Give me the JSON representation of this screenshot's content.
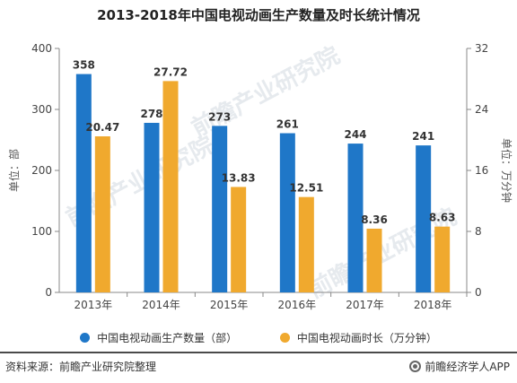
{
  "title": "2013-2018年中国电视动画生产数量及时长统计情况",
  "chart_data": {
    "type": "bar",
    "title": "2013-2018年中国电视动画生产数量及时长统计情况",
    "categories": [
      "2013年",
      "2014年",
      "2015年",
      "2016年",
      "2017年",
      "2018年"
    ],
    "series": [
      {
        "name": "中国电视动画生产数量（部）",
        "axis": "left",
        "color": "#1f77c8",
        "values": [
          358,
          278,
          273,
          261,
          244,
          241
        ],
        "labels": [
          "358",
          "278",
          "273",
          "261",
          "244",
          "241"
        ]
      },
      {
        "name": "中国电视动画时长（万分钟）",
        "axis": "right",
        "color": "#f0a92e",
        "values": [
          20.47,
          27.72,
          13.83,
          12.51,
          8.36,
          8.63
        ],
        "labels": [
          "20.47",
          "27.72",
          "13.83",
          "12.51",
          "8.36",
          "8.63"
        ]
      }
    ],
    "ylabel_left": "单位：部",
    "ylabel_right": "单位：万分钟",
    "ylim_left": [
      0,
      400
    ],
    "ylim_right": [
      0,
      32
    ],
    "yticks_left": [
      0,
      100,
      200,
      300,
      400
    ],
    "yticks_right": [
      0,
      8,
      16,
      24,
      32
    ],
    "grid": false,
    "legend_position": "bottom"
  },
  "source": "资料来源：前瞻产业研究院整理",
  "brand": "前瞻经济学人APP",
  "watermark": "前瞻产业研究院"
}
